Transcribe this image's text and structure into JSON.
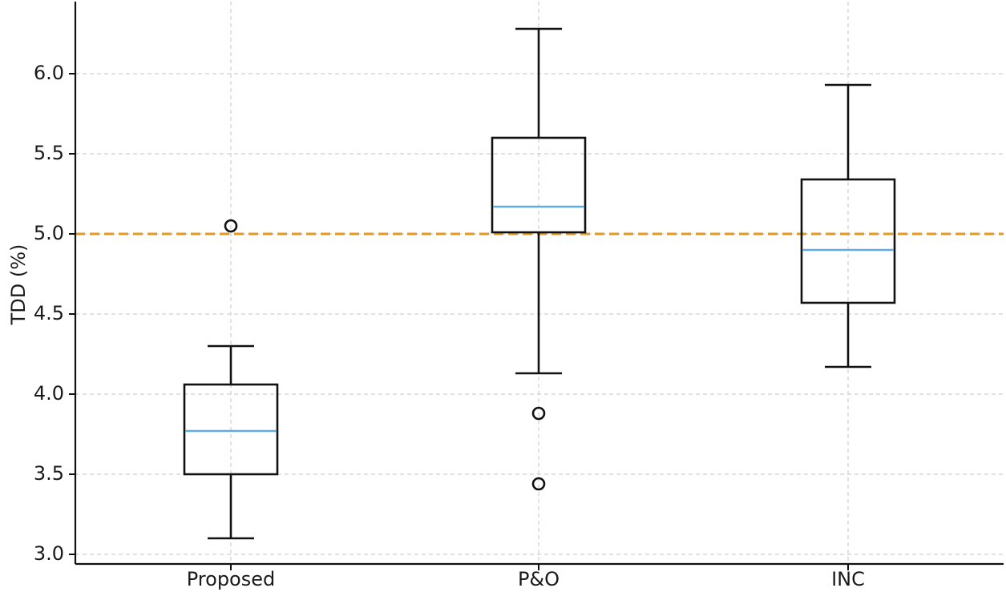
{
  "chart_data": {
    "type": "box",
    "title": "",
    "xlabel": "",
    "ylabel": "TDD (%)",
    "ylim": [
      2.95,
      6.45
    ],
    "yticks": [
      3.0,
      3.5,
      4.0,
      4.5,
      5.0,
      5.5,
      6.0
    ],
    "ytick_labels": [
      "3.0",
      "3.5",
      "4.0",
      "4.5",
      "5.0",
      "5.5",
      "6.0"
    ],
    "categories": [
      "Proposed",
      "P&O",
      "INC"
    ],
    "boxes": [
      {
        "name": "Proposed",
        "whisker_low": 3.1,
        "q1": 3.5,
        "median": 3.77,
        "q3": 4.06,
        "whisker_high": 4.3,
        "outliers": [
          5.05
        ]
      },
      {
        "name": "P&O",
        "whisker_low": 4.13,
        "q1": 5.01,
        "median": 5.17,
        "q3": 5.6,
        "whisker_high": 6.28,
        "outliers": [
          3.88,
          3.44
        ]
      },
      {
        "name": "INC",
        "whisker_low": 4.17,
        "q1": 4.57,
        "median": 4.9,
        "q3": 5.34,
        "whisker_high": 5.93,
        "outliers": []
      }
    ],
    "reference_line": {
      "y": 5.0,
      "style": "dashed"
    },
    "grid": true,
    "colors": {
      "median": "#5dade2",
      "reference": "#e39a1f",
      "box": "#111111",
      "grid": "#cfcfcf"
    }
  }
}
